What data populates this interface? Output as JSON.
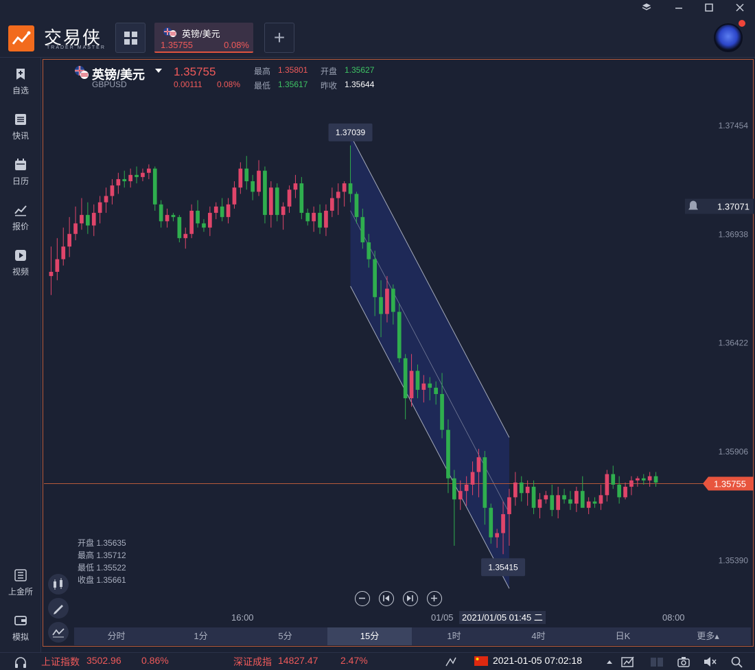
{
  "app": {
    "brand": "交易侠",
    "brand_sub": "TRADER MASTER"
  },
  "tab": {
    "name": "英镑/美元",
    "price": "1.35755",
    "change_pct": "0.08%"
  },
  "sidebar": {
    "items": [
      {
        "label": "自选",
        "icon": "bookmark-icon"
      },
      {
        "label": "快讯",
        "icon": "list-icon"
      },
      {
        "label": "日历",
        "icon": "calendar-icon"
      },
      {
        "label": "报价",
        "icon": "chart-icon"
      },
      {
        "label": "视频",
        "icon": "play-icon"
      },
      {
        "label": "上金所",
        "icon": "exchange-icon"
      },
      {
        "label": "模拟",
        "icon": "wallet-icon"
      }
    ]
  },
  "header": {
    "name": "英镑/美元",
    "code": "GBPUSD",
    "price": "1.35755",
    "change": "0.00111",
    "change_pct": "0.08%",
    "high_label": "最高",
    "high": "1.35801",
    "open_label": "开盘",
    "open": "1.35627",
    "low_label": "最低",
    "low": "1.35617",
    "prev_label": "昨收",
    "prev": "1.35644"
  },
  "ohlc_box": {
    "open": "开盘 1.35635",
    "high": "最高 1.35712",
    "low": "最低 1.35522",
    "close": "收盘 1.35661"
  },
  "timeframes": [
    "分时",
    "1分",
    "5分",
    "15分",
    "1时",
    "4时",
    "日K",
    "更多▴"
  ],
  "active_timeframe": 3,
  "time_tooltip": "2021/01/05 01:45 二",
  "status": {
    "idx1_name": "上证指数",
    "idx1_value": "3502.96",
    "idx1_pct": "0.86%",
    "idx2_name": "深证成指",
    "idx2_value": "14827.47",
    "idx2_pct": "2.47%",
    "datetime": "2021-01-05 07:02:18"
  },
  "colors": {
    "up": "#e0456a",
    "down": "#2fae4e",
    "accent": "#f26b1d",
    "channel": "#1e2a5e"
  },
  "chart_data": {
    "type": "candlestick",
    "symbol": "GBPUSD",
    "interval": "15分",
    "y_ticks": [
      1.37454,
      1.36938,
      1.36422,
      1.35906,
      1.3539
    ],
    "x_ticks": [
      "16:00",
      "01/05",
      "08:00"
    ],
    "ylim": [
      1.3517,
      1.3777
    ],
    "current_price": 1.35755,
    "alert_price": 1.37071,
    "annotations": [
      {
        "label": "1.37039",
        "value": 1.37039
      },
      {
        "label": "1.35415",
        "value": 1.35415
      }
    ],
    "candles": [
      {
        "o": 1.3674,
        "h": 1.3688,
        "l": 1.3665,
        "c": 1.3676
      },
      {
        "o": 1.3676,
        "h": 1.3692,
        "l": 1.3672,
        "c": 1.3682
      },
      {
        "o": 1.3682,
        "h": 1.3697,
        "l": 1.3679,
        "c": 1.3688
      },
      {
        "o": 1.3688,
        "h": 1.3702,
        "l": 1.3683,
        "c": 1.3694
      },
      {
        "o": 1.3694,
        "h": 1.3707,
        "l": 1.3691,
        "c": 1.3699
      },
      {
        "o": 1.3699,
        "h": 1.3711,
        "l": 1.3696,
        "c": 1.3703
      },
      {
        "o": 1.3703,
        "h": 1.3709,
        "l": 1.3694,
        "c": 1.3698
      },
      {
        "o": 1.3698,
        "h": 1.3708,
        "l": 1.3693,
        "c": 1.3704
      },
      {
        "o": 1.3704,
        "h": 1.3712,
        "l": 1.3699,
        "c": 1.3709
      },
      {
        "o": 1.3709,
        "h": 1.3716,
        "l": 1.3704,
        "c": 1.3712
      },
      {
        "o": 1.3712,
        "h": 1.372,
        "l": 1.3708,
        "c": 1.3717
      },
      {
        "o": 1.3717,
        "h": 1.3723,
        "l": 1.3713,
        "c": 1.372
      },
      {
        "o": 1.372,
        "h": 1.3724,
        "l": 1.3716,
        "c": 1.3719
      },
      {
        "o": 1.3719,
        "h": 1.3725,
        "l": 1.3716,
        "c": 1.3722
      },
      {
        "o": 1.3722,
        "h": 1.3726,
        "l": 1.3718,
        "c": 1.3721
      },
      {
        "o": 1.3721,
        "h": 1.3725,
        "l": 1.3719,
        "c": 1.3723
      },
      {
        "o": 1.3723,
        "h": 1.3727,
        "l": 1.372,
        "c": 1.3725
      },
      {
        "o": 1.3725,
        "h": 1.3726,
        "l": 1.3705,
        "c": 1.3708
      },
      {
        "o": 1.3708,
        "h": 1.371,
        "l": 1.3697,
        "c": 1.37
      },
      {
        "o": 1.37,
        "h": 1.3706,
        "l": 1.3697,
        "c": 1.3703
      },
      {
        "o": 1.3703,
        "h": 1.3704,
        "l": 1.37,
        "c": 1.3702
      },
      {
        "o": 1.3702,
        "h": 1.3703,
        "l": 1.369,
        "c": 1.3692
      },
      {
        "o": 1.3692,
        "h": 1.3697,
        "l": 1.3687,
        "c": 1.3694
      },
      {
        "o": 1.3694,
        "h": 1.3708,
        "l": 1.3692,
        "c": 1.3705
      },
      {
        "o": 1.3705,
        "h": 1.371,
        "l": 1.3697,
        "c": 1.3699
      },
      {
        "o": 1.3699,
        "h": 1.3701,
        "l": 1.3695,
        "c": 1.3697
      },
      {
        "o": 1.3697,
        "h": 1.3707,
        "l": 1.3693,
        "c": 1.3704
      },
      {
        "o": 1.3704,
        "h": 1.3709,
        "l": 1.3701,
        "c": 1.3707
      },
      {
        "o": 1.3707,
        "h": 1.3711,
        "l": 1.37,
        "c": 1.3702
      },
      {
        "o": 1.3702,
        "h": 1.3711,
        "l": 1.3699,
        "c": 1.3708
      },
      {
        "o": 1.3708,
        "h": 1.3719,
        "l": 1.3706,
        "c": 1.3716
      },
      {
        "o": 1.3716,
        "h": 1.3728,
        "l": 1.3713,
        "c": 1.3725
      },
      {
        "o": 1.3725,
        "h": 1.3731,
        "l": 1.3715,
        "c": 1.3719
      },
      {
        "o": 1.3719,
        "h": 1.3722,
        "l": 1.371,
        "c": 1.3714
      },
      {
        "o": 1.3714,
        "h": 1.3729,
        "l": 1.3712,
        "c": 1.3724
      },
      {
        "o": 1.3724,
        "h": 1.3726,
        "l": 1.3699,
        "c": 1.3703
      },
      {
        "o": 1.3703,
        "h": 1.3719,
        "l": 1.3697,
        "c": 1.3716
      },
      {
        "o": 1.3716,
        "h": 1.3718,
        "l": 1.37,
        "c": 1.3703
      },
      {
        "o": 1.3703,
        "h": 1.3709,
        "l": 1.3696,
        "c": 1.3707
      },
      {
        "o": 1.3707,
        "h": 1.3717,
        "l": 1.3704,
        "c": 1.3715
      },
      {
        "o": 1.3715,
        "h": 1.3722,
        "l": 1.3711,
        "c": 1.3718
      },
      {
        "o": 1.3718,
        "h": 1.3721,
        "l": 1.3701,
        "c": 1.3704
      },
      {
        "o": 1.3704,
        "h": 1.3706,
        "l": 1.3698,
        "c": 1.37
      },
      {
        "o": 1.37,
        "h": 1.3707,
        "l": 1.3695,
        "c": 1.3704
      },
      {
        "o": 1.3704,
        "h": 1.3708,
        "l": 1.3694,
        "c": 1.3697
      },
      {
        "o": 1.3697,
        "h": 1.3708,
        "l": 1.3693,
        "c": 1.3705
      },
      {
        "o": 1.3705,
        "h": 1.3716,
        "l": 1.3702,
        "c": 1.3711
      },
      {
        "o": 1.3711,
        "h": 1.3718,
        "l": 1.3703,
        "c": 1.3714
      },
      {
        "o": 1.3714,
        "h": 1.3719,
        "l": 1.3707,
        "c": 1.3718
      },
      {
        "o": 1.3718,
        "h": 1.3736,
        "l": 1.3709,
        "c": 1.3713
      },
      {
        "o": 1.3713,
        "h": 1.3714,
        "l": 1.3699,
        "c": 1.3702
      },
      {
        "o": 1.3702,
        "h": 1.3706,
        "l": 1.3687,
        "c": 1.369
      },
      {
        "o": 1.369,
        "h": 1.3694,
        "l": 1.3678,
        "c": 1.3682
      },
      {
        "o": 1.3682,
        "h": 1.3686,
        "l": 1.3655,
        "c": 1.3664
      },
      {
        "o": 1.3664,
        "h": 1.3672,
        "l": 1.3645,
        "c": 1.3656
      },
      {
        "o": 1.3656,
        "h": 1.3674,
        "l": 1.3652,
        "c": 1.3668
      },
      {
        "o": 1.3668,
        "h": 1.367,
        "l": 1.3651,
        "c": 1.3657
      },
      {
        "o": 1.3657,
        "h": 1.3661,
        "l": 1.3633,
        "c": 1.3635
      },
      {
        "o": 1.3635,
        "h": 1.3637,
        "l": 1.3606,
        "c": 1.3616
      },
      {
        "o": 1.3616,
        "h": 1.3637,
        "l": 1.3612,
        "c": 1.3629
      },
      {
        "o": 1.3629,
        "h": 1.3632,
        "l": 1.3616,
        "c": 1.362
      },
      {
        "o": 1.362,
        "h": 1.3627,
        "l": 1.3614,
        "c": 1.3623
      },
      {
        "o": 1.3623,
        "h": 1.3626,
        "l": 1.3615,
        "c": 1.3621
      },
      {
        "o": 1.3621,
        "h": 1.3624,
        "l": 1.3613,
        "c": 1.3618
      },
      {
        "o": 1.3618,
        "h": 1.3628,
        "l": 1.3597,
        "c": 1.3601
      },
      {
        "o": 1.3601,
        "h": 1.3606,
        "l": 1.3571,
        "c": 1.3578
      },
      {
        "o": 1.3578,
        "h": 1.3582,
        "l": 1.3546,
        "c": 1.3568
      },
      {
        "o": 1.3568,
        "h": 1.3577,
        "l": 1.3563,
        "c": 1.3572
      },
      {
        "o": 1.3572,
        "h": 1.3579,
        "l": 1.3565,
        "c": 1.3575
      },
      {
        "o": 1.3575,
        "h": 1.3586,
        "l": 1.357,
        "c": 1.3581
      },
      {
        "o": 1.3581,
        "h": 1.3592,
        "l": 1.3569,
        "c": 1.3588
      },
      {
        "o": 1.3588,
        "h": 1.3591,
        "l": 1.3556,
        "c": 1.3564
      },
      {
        "o": 1.3564,
        "h": 1.3566,
        "l": 1.3547,
        "c": 1.355
      },
      {
        "o": 1.355,
        "h": 1.3554,
        "l": 1.3545,
        "c": 1.3552
      },
      {
        "o": 1.3552,
        "h": 1.3567,
        "l": 1.3542,
        "c": 1.3561
      },
      {
        "o": 1.3561,
        "h": 1.3573,
        "l": 1.3546,
        "c": 1.3569
      },
      {
        "o": 1.3569,
        "h": 1.3581,
        "l": 1.3565,
        "c": 1.3576
      },
      {
        "o": 1.3576,
        "h": 1.3579,
        "l": 1.3567,
        "c": 1.3571
      },
      {
        "o": 1.3571,
        "h": 1.3577,
        "l": 1.3565,
        "c": 1.3574
      },
      {
        "o": 1.3574,
        "h": 1.3577,
        "l": 1.3561,
        "c": 1.3564
      },
      {
        "o": 1.3564,
        "h": 1.3571,
        "l": 1.3559,
        "c": 1.3568
      },
      {
        "o": 1.3568,
        "h": 1.3572,
        "l": 1.3566,
        "c": 1.357
      },
      {
        "o": 1.357,
        "h": 1.3575,
        "l": 1.356,
        "c": 1.3563
      },
      {
        "o": 1.3563,
        "h": 1.3574,
        "l": 1.3559,
        "c": 1.357
      },
      {
        "o": 1.357,
        "h": 1.3573,
        "l": 1.3566,
        "c": 1.3568
      },
      {
        "o": 1.3568,
        "h": 1.3572,
        "l": 1.3563,
        "c": 1.3566
      },
      {
        "o": 1.3566,
        "h": 1.3574,
        "l": 1.3562,
        "c": 1.3572
      },
      {
        "o": 1.3572,
        "h": 1.3579,
        "l": 1.3566,
        "c": 1.3564
      },
      {
        "o": 1.3564,
        "h": 1.3569,
        "l": 1.3561,
        "c": 1.3567
      },
      {
        "o": 1.3567,
        "h": 1.3569,
        "l": 1.3564,
        "c": 1.3566
      },
      {
        "o": 1.3566,
        "h": 1.3575,
        "l": 1.3563,
        "c": 1.357
      },
      {
        "o": 1.357,
        "h": 1.3582,
        "l": 1.3567,
        "c": 1.358
      },
      {
        "o": 1.358,
        "h": 1.3584,
        "l": 1.3573,
        "c": 1.3575
      },
      {
        "o": 1.3575,
        "h": 1.3579,
        "l": 1.3566,
        "c": 1.3569
      },
      {
        "o": 1.3569,
        "h": 1.3576,
        "l": 1.3568,
        "c": 1.3574
      },
      {
        "o": 1.3574,
        "h": 1.3579,
        "l": 1.357,
        "c": 1.3577
      },
      {
        "o": 1.3577,
        "h": 1.3579,
        "l": 1.3574,
        "c": 1.3578
      },
      {
        "o": 1.3578,
        "h": 1.358,
        "l": 1.3575,
        "c": 1.3577
      },
      {
        "o": 1.3577,
        "h": 1.3581,
        "l": 1.3574,
        "c": 1.3579
      },
      {
        "o": 1.3579,
        "h": 1.3581,
        "l": 1.3574,
        "c": 1.3576
      }
    ]
  }
}
